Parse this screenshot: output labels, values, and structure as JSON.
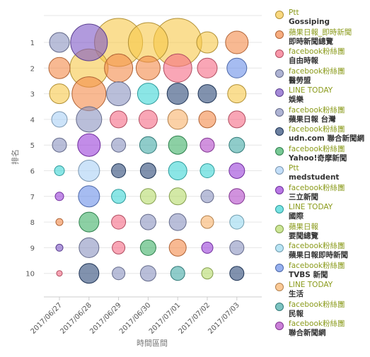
{
  "chart_data": {
    "type": "scatter",
    "title": "",
    "xlabel": "時間區間",
    "ylabel": "排名",
    "categories": [
      "2017/06/27",
      "2017/06/28",
      "2017/06/29",
      "2017/06/30",
      "2017/07/01",
      "2017/07/02",
      "2017/07/03"
    ],
    "ranks": [
      "1",
      "2",
      "3",
      "4",
      "5",
      "6",
      "7",
      "8",
      "9",
      "10"
    ],
    "legend_position": "right",
    "series": [
      {
        "source": "Ptt",
        "category": "Gossiping",
        "color": "#f6c84a"
      },
      {
        "source": "蘋果日報_即時新聞",
        "category": "即時新聞總覽",
        "color": "#f48a4a"
      },
      {
        "source": "facebook粉絲團",
        "category": "自由時報",
        "color": "#f56b85"
      },
      {
        "source": "facebook粉絲團",
        "category": "醫勞盟",
        "color": "#8b93c0"
      },
      {
        "source": "LINE TODAY",
        "category": "娛樂",
        "color": "#7d57c6"
      },
      {
        "source": "facebook粉絲團",
        "category": "蘋果日報 台灣",
        "color": "#8b93c0"
      },
      {
        "source": "facebook粉絲團",
        "category": "udn.com 聯合新聞網",
        "color": "#2d4a78"
      },
      {
        "source": "facebook粉絲團",
        "category": "Yahoo!奇摩新聞",
        "color": "#3fb068"
      },
      {
        "source": "Ptt",
        "category": "medstudent",
        "color": "#aad0f5"
      },
      {
        "source": "facebook粉絲團",
        "category": "三立新聞",
        "color": "#9a3fd8"
      },
      {
        "source": "LINE TODAY",
        "category": "國際",
        "color": "#3dd6d6"
      },
      {
        "source": "蘋果日報",
        "category": "要聞總覽",
        "color": "#b6db6a"
      },
      {
        "source": "facebook粉絲團",
        "category": "蘋果日報即時新聞",
        "color": "#9ad8f0"
      },
      {
        "source": "facebook粉絲團",
        "category": "TVBS 新聞",
        "color": "#6a8fe8"
      },
      {
        "source": "LINE TODAY",
        "category": "生活",
        "color": "#f8b26a"
      },
      {
        "source": "facebook粉絲團",
        "category": "民報",
        "color": "#45aaa6"
      },
      {
        "source": "facebook粉絲團",
        "category": "聯合新聞網",
        "color": "#b34ac8"
      }
    ],
    "points": [
      {
        "x": "2017/06/27",
        "rank": 1,
        "series": 3,
        "size": 14
      },
      {
        "x": "2017/06/28",
        "rank": 1,
        "series": 4,
        "size": 26
      },
      {
        "x": "2017/06/29",
        "rank": 1,
        "series": 0,
        "size": 34
      },
      {
        "x": "2017/06/30",
        "rank": 1,
        "series": 0,
        "size": 28
      },
      {
        "x": "2017/07/01",
        "rank": 1,
        "series": 0,
        "size": 34
      },
      {
        "x": "2017/07/02",
        "rank": 1,
        "series": 0,
        "size": 15
      },
      {
        "x": "2017/07/03",
        "rank": 1,
        "series": 1,
        "size": 16
      },
      {
        "x": "2017/06/27",
        "rank": 2,
        "series": 1,
        "size": 15
      },
      {
        "x": "2017/06/28",
        "rank": 2,
        "series": 0,
        "size": 27
      },
      {
        "x": "2017/06/29",
        "rank": 2,
        "series": 1,
        "size": 20
      },
      {
        "x": "2017/06/30",
        "rank": 2,
        "series": 1,
        "size": 17
      },
      {
        "x": "2017/07/01",
        "rank": 2,
        "series": 2,
        "size": 20
      },
      {
        "x": "2017/07/02",
        "rank": 2,
        "series": 2,
        "size": 14
      },
      {
        "x": "2017/07/03",
        "rank": 2,
        "series": 13,
        "size": 14
      },
      {
        "x": "2017/06/27",
        "rank": 3,
        "series": 0,
        "size": 14
      },
      {
        "x": "2017/06/28",
        "rank": 3,
        "series": 1,
        "size": 24
      },
      {
        "x": "2017/06/29",
        "rank": 3,
        "series": 3,
        "size": 17
      },
      {
        "x": "2017/06/30",
        "rank": 3,
        "series": 10,
        "size": 15
      },
      {
        "x": "2017/07/01",
        "rank": 3,
        "series": 6,
        "size": 15
      },
      {
        "x": "2017/07/02",
        "rank": 3,
        "series": 6,
        "size": 13
      },
      {
        "x": "2017/07/03",
        "rank": 3,
        "series": 0,
        "size": 13
      },
      {
        "x": "2017/06/27",
        "rank": 4,
        "series": 8,
        "size": 11
      },
      {
        "x": "2017/06/28",
        "rank": 4,
        "series": 5,
        "size": 18
      },
      {
        "x": "2017/06/29",
        "rank": 4,
        "series": 2,
        "size": 12
      },
      {
        "x": "2017/06/30",
        "rank": 4,
        "series": 2,
        "size": 13
      },
      {
        "x": "2017/07/01",
        "rank": 4,
        "series": 14,
        "size": 14
      },
      {
        "x": "2017/07/02",
        "rank": 4,
        "series": 1,
        "size": 12
      },
      {
        "x": "2017/07/03",
        "rank": 4,
        "series": 2,
        "size": 12
      },
      {
        "x": "2017/06/27",
        "rank": 5,
        "series": 3,
        "size": 10
      },
      {
        "x": "2017/06/28",
        "rank": 5,
        "series": 9,
        "size": 16
      },
      {
        "x": "2017/06/29",
        "rank": 5,
        "series": 3,
        "size": 10
      },
      {
        "x": "2017/06/30",
        "rank": 5,
        "series": 15,
        "size": 12
      },
      {
        "x": "2017/07/01",
        "rank": 5,
        "series": 7,
        "size": 13
      },
      {
        "x": "2017/07/02",
        "rank": 5,
        "series": 16,
        "size": 10
      },
      {
        "x": "2017/07/03",
        "rank": 5,
        "series": 15,
        "size": 11
      },
      {
        "x": "2017/06/27",
        "rank": 6,
        "series": 10,
        "size": 7
      },
      {
        "x": "2017/06/28",
        "rank": 6,
        "series": 8,
        "size": 15
      },
      {
        "x": "2017/06/29",
        "rank": 6,
        "series": 6,
        "size": 10
      },
      {
        "x": "2017/06/30",
        "rank": 6,
        "series": 6,
        "size": 11
      },
      {
        "x": "2017/07/01",
        "rank": 6,
        "series": 10,
        "size": 13
      },
      {
        "x": "2017/07/02",
        "rank": 6,
        "series": 10,
        "size": 10
      },
      {
        "x": "2017/07/03",
        "rank": 6,
        "series": 9,
        "size": 11
      },
      {
        "x": "2017/06/27",
        "rank": 7,
        "series": 9,
        "size": 6
      },
      {
        "x": "2017/06/28",
        "rank": 7,
        "series": 13,
        "size": 15
      },
      {
        "x": "2017/06/29",
        "rank": 7,
        "series": 10,
        "size": 10
      },
      {
        "x": "2017/06/30",
        "rank": 7,
        "series": 11,
        "size": 11
      },
      {
        "x": "2017/07/01",
        "rank": 7,
        "series": 11,
        "size": 12
      },
      {
        "x": "2017/07/02",
        "rank": 7,
        "series": 3,
        "size": 9
      },
      {
        "x": "2017/07/03",
        "rank": 7,
        "series": 16,
        "size": 11
      },
      {
        "x": "2017/06/27",
        "rank": 8,
        "series": 1,
        "size": 5
      },
      {
        "x": "2017/06/28",
        "rank": 8,
        "series": 7,
        "size": 14
      },
      {
        "x": "2017/06/29",
        "rank": 8,
        "series": 2,
        "size": 10
      },
      {
        "x": "2017/06/30",
        "rank": 8,
        "series": 3,
        "size": 11
      },
      {
        "x": "2017/07/01",
        "rank": 8,
        "series": 3,
        "size": 12
      },
      {
        "x": "2017/07/02",
        "rank": 8,
        "series": 14,
        "size": 9
      },
      {
        "x": "2017/07/03",
        "rank": 8,
        "series": 12,
        "size": 10
      },
      {
        "x": "2017/06/27",
        "rank": 9,
        "series": 4,
        "size": 5
      },
      {
        "x": "2017/06/28",
        "rank": 9,
        "series": 3,
        "size": 14
      },
      {
        "x": "2017/06/29",
        "rank": 9,
        "series": 2,
        "size": 9
      },
      {
        "x": "2017/06/30",
        "rank": 9,
        "series": 7,
        "size": 11
      },
      {
        "x": "2017/07/01",
        "rank": 9,
        "series": 1,
        "size": 12
      },
      {
        "x": "2017/07/02",
        "rank": 9,
        "series": 9,
        "size": 8
      },
      {
        "x": "2017/07/03",
        "rank": 9,
        "series": 3,
        "size": 10
      },
      {
        "x": "2017/06/27",
        "rank": 10,
        "series": 2,
        "size": 4
      },
      {
        "x": "2017/06/28",
        "rank": 10,
        "series": 6,
        "size": 14
      },
      {
        "x": "2017/06/29",
        "rank": 10,
        "series": 3,
        "size": 9
      },
      {
        "x": "2017/06/30",
        "rank": 10,
        "series": 3,
        "size": 11
      },
      {
        "x": "2017/07/01",
        "rank": 10,
        "series": 15,
        "size": 10
      },
      {
        "x": "2017/07/02",
        "rank": 10,
        "series": 11,
        "size": 8
      },
      {
        "x": "2017/07/03",
        "rank": 10,
        "series": 6,
        "size": 10
      }
    ]
  }
}
